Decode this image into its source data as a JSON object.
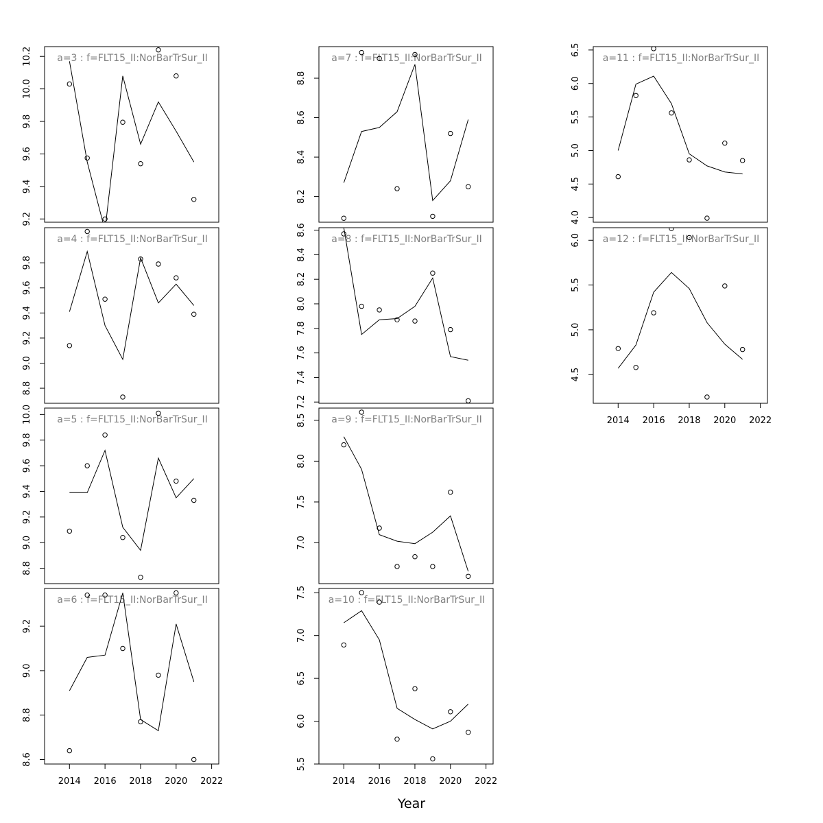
{
  "figure": {
    "xlabel": "Year"
  },
  "chart_data": [
    {
      "type": "scatter",
      "title": "a=3  :  f=FLT15_II:NorBarTrSur_II",
      "x": [
        2014,
        2015,
        2016,
        2017,
        2018,
        2019,
        2020,
        2021
      ],
      "observed": [
        10.03,
        9.575,
        9.2,
        9.795,
        9.54,
        10.24,
        10.08,
        9.32
      ],
      "fitted": [
        10.17,
        9.55,
        9.13,
        10.08,
        9.66,
        9.92,
        9.74,
        9.55
      ],
      "ylim": [
        9.18,
        10.26
      ],
      "yticks": [
        "9.2",
        "9.4",
        "9.6",
        "9.8",
        "10.0",
        "10.2"
      ],
      "xlim": [
        2012.6,
        2022.4
      ],
      "xticks": []
    },
    {
      "type": "scatter",
      "title": "a=4  :  f=FLT15_II:NorBarTrSur_II",
      "x": [
        2014,
        2015,
        2016,
        2017,
        2018,
        2019,
        2020,
        2021
      ],
      "observed": [
        9.14,
        10.05,
        9.51,
        8.73,
        9.83,
        9.79,
        9.68,
        9.39
      ],
      "fitted": [
        9.41,
        9.89,
        9.3,
        9.03,
        9.84,
        9.48,
        9.63,
        9.46
      ],
      "ylim": [
        8.68,
        10.08
      ],
      "yticks": [
        "8.8",
        "9.0",
        "9.2",
        "9.4",
        "9.6",
        "9.8"
      ],
      "xlim": [
        2012.6,
        2022.4
      ],
      "xticks": []
    },
    {
      "type": "scatter",
      "title": "a=5  :  f=FLT15_II:NorBarTrSur_II",
      "x": [
        2014,
        2015,
        2016,
        2017,
        2018,
        2019,
        2020,
        2021
      ],
      "observed": [
        9.09,
        9.6,
        9.84,
        9.04,
        8.73,
        10.01,
        9.48,
        9.33
      ],
      "fitted": [
        9.39,
        9.39,
        9.72,
        9.12,
        8.94,
        9.66,
        9.35,
        9.5
      ],
      "ylim": [
        8.68,
        10.05
      ],
      "yticks": [
        "8.8",
        "9.0",
        "9.2",
        "9.4",
        "9.6",
        "9.8",
        "10.0"
      ],
      "xlim": [
        2012.6,
        2022.4
      ],
      "xticks": []
    },
    {
      "type": "scatter",
      "title": "a=6  :  f=FLT15_II:NorBarTrSur_II",
      "x": [
        2014,
        2015,
        2016,
        2017,
        2018,
        2019,
        2020,
        2021
      ],
      "observed": [
        8.64,
        9.34,
        9.34,
        9.1,
        8.77,
        8.98,
        9.35,
        8.6
      ],
      "fitted": [
        8.91,
        9.06,
        9.07,
        9.35,
        8.78,
        8.73,
        9.21,
        8.95
      ],
      "ylim": [
        8.58,
        9.37
      ],
      "yticks": [
        "8.6",
        "8.8",
        "9.0",
        "9.2"
      ],
      "xlim": [
        2012.6,
        2022.4
      ],
      "xticks": [
        "2014",
        "2016",
        "2018",
        "2020",
        "2022"
      ]
    },
    {
      "type": "scatter",
      "title": "a=7  :  f=FLT15_II:NorBarTrSur_II",
      "x": [
        2014,
        2015,
        2016,
        2017,
        2018,
        2019,
        2020,
        2021
      ],
      "observed": [
        8.09,
        8.93,
        8.9,
        8.24,
        8.92,
        8.1,
        8.52,
        8.25
      ],
      "fitted": [
        8.27,
        8.53,
        8.55,
        8.63,
        8.87,
        8.18,
        8.28,
        8.59
      ],
      "ylim": [
        8.07,
        8.96
      ],
      "yticks": [
        "8.2",
        "8.4",
        "8.6",
        "8.8"
      ],
      "xlim": [
        2012.6,
        2022.4
      ],
      "xticks": []
    },
    {
      "type": "scatter",
      "title": "a=8  :  f=FLT15_II:NorBarTrSur_II",
      "x": [
        2014,
        2015,
        2016,
        2017,
        2018,
        2019,
        2020,
        2021
      ],
      "observed": [
        8.57,
        7.98,
        7.95,
        7.87,
        7.86,
        8.25,
        7.79,
        7.21
      ],
      "fitted": [
        8.62,
        7.75,
        7.87,
        7.88,
        7.98,
        8.21,
        7.57,
        7.54
      ],
      "ylim": [
        7.19,
        8.62
      ],
      "yticks": [
        "7.2",
        "7.4",
        "7.6",
        "7.8",
        "8.0",
        "8.2",
        "8.4",
        "8.6"
      ],
      "xlim": [
        2012.6,
        2022.4
      ],
      "xticks": []
    },
    {
      "type": "scatter",
      "title": "a=9  :  f=FLT15_II:NorBarTrSur_II",
      "x": [
        2014,
        2015,
        2016,
        2017,
        2018,
        2019,
        2020,
        2021
      ],
      "observed": [
        8.2,
        8.6,
        7.18,
        6.71,
        6.83,
        6.71,
        7.62,
        6.59
      ],
      "fitted": [
        8.3,
        7.9,
        7.1,
        7.02,
        6.99,
        7.13,
        7.33,
        6.65
      ],
      "ylim": [
        6.5,
        8.65
      ],
      "yticks": [
        "7.0",
        "7.5",
        "8.0",
        "8.5"
      ],
      "xlim": [
        2012.6,
        2022.4
      ],
      "xticks": []
    },
    {
      "type": "scatter",
      "title": "a=10  :  f=FLT15_II:NorBarTrSur_II",
      "x": [
        2014,
        2015,
        2016,
        2017,
        2018,
        2019,
        2020,
        2021
      ],
      "observed": [
        6.89,
        7.5,
        7.39,
        5.79,
        6.38,
        5.56,
        6.11,
        5.87
      ],
      "fitted": [
        7.15,
        7.29,
        6.95,
        6.15,
        6.02,
        5.91,
        6.0,
        6.2
      ],
      "ylim": [
        5.5,
        7.55
      ],
      "yticks": [
        "5.5",
        "6.0",
        "6.5",
        "7.0",
        "7.5"
      ],
      "xlim": [
        2012.6,
        2022.4
      ],
      "xticks": [
        "2014",
        "2016",
        "2018",
        "2020",
        "2022"
      ]
    },
    {
      "type": "scatter",
      "title": "a=11  :  f=FLT15_II:NorBarTrSur_II",
      "x": [
        2014,
        2015,
        2016,
        2017,
        2018,
        2019,
        2020,
        2021
      ],
      "observed": [
        4.61,
        5.82,
        6.52,
        5.56,
        4.86,
        3.99,
        5.11,
        4.85
      ],
      "fitted": [
        5.0,
        5.99,
        6.11,
        5.7,
        4.95,
        4.77,
        4.68,
        4.65
      ],
      "ylim": [
        3.93,
        6.55
      ],
      "yticks": [
        "4.0",
        "4.5",
        "5.0",
        "5.5",
        "6.0",
        "6.5"
      ],
      "xlim": [
        2012.6,
        2022.4
      ],
      "xticks": []
    },
    {
      "type": "scatter",
      "title": "a=12  :  f=FLT15_II:NorBarTrSur_II",
      "x": [
        2014,
        2015,
        2016,
        2017,
        2018,
        2019,
        2020,
        2021
      ],
      "observed": [
        4.79,
        4.58,
        5.19,
        6.13,
        6.03,
        4.25,
        5.49,
        4.78
      ],
      "fitted": [
        4.57,
        4.83,
        5.42,
        5.64,
        5.46,
        5.08,
        4.84,
        4.67
      ],
      "ylim": [
        4.18,
        6.14
      ],
      "yticks": [
        "4.5",
        "5.0",
        "5.5",
        "6.0"
      ],
      "xlim": [
        2012.6,
        2022.4
      ],
      "xticks": [
        "2014",
        "2016",
        "2018",
        "2020",
        "2022"
      ]
    }
  ]
}
